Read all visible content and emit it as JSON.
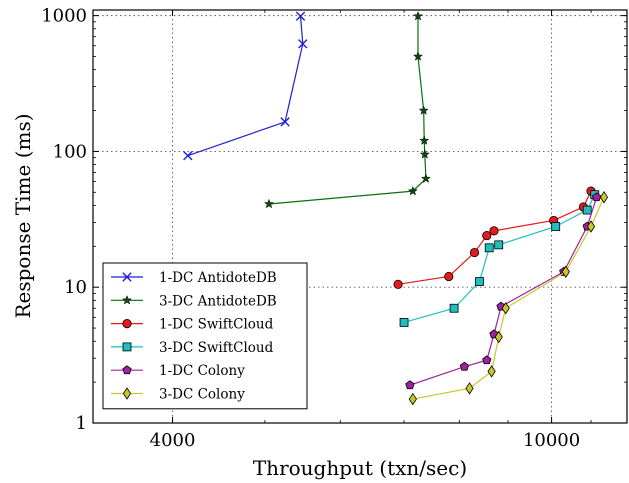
{
  "chart_data": {
    "type": "line",
    "title": "",
    "xlabel": "Throughput (txn/sec)",
    "ylabel": "Response Time (ms)",
    "xscale": "log",
    "yscale": "log",
    "xlim": [
      3300,
      12000
    ],
    "ylim": [
      1,
      1100
    ],
    "xticks": [
      {
        "value": 4000,
        "label": "4000"
      },
      {
        "value": 10000,
        "label": "10000"
      }
    ],
    "yticks": [
      {
        "value": 1,
        "label": "1"
      },
      {
        "value": 10,
        "label": "10"
      },
      {
        "value": 100,
        "label": "100"
      },
      {
        "value": 1000,
        "label": "1000"
      }
    ],
    "grid": true,
    "legend_position": "bottom-left",
    "series": [
      {
        "name": "1-DC AntidoteDB",
        "marker": "x",
        "color": "#1f1fd6",
        "points": [
          [
            4150,
            93
          ],
          [
            5250,
            165
          ],
          [
            5480,
            620
          ],
          [
            5450,
            990
          ]
        ]
      },
      {
        "name": "3-DC AntidoteDB",
        "marker": "star",
        "color": "#0b6e0b",
        "points": [
          [
            5050,
            41
          ],
          [
            7150,
            51
          ],
          [
            7380,
            63
          ],
          [
            7360,
            95
          ],
          [
            7350,
            120
          ],
          [
            7340,
            200
          ],
          [
            7240,
            500
          ],
          [
            7240,
            990
          ]
        ]
      },
      {
        "name": "1-DC SwiftCloud",
        "marker": "circle",
        "color": "#e41a1c",
        "points": [
          [
            6900,
            10.5
          ],
          [
            7800,
            12
          ],
          [
            8300,
            18
          ],
          [
            8550,
            24
          ],
          [
            8700,
            26
          ],
          [
            10050,
            31
          ],
          [
            10800,
            39
          ],
          [
            11000,
            51
          ]
        ]
      },
      {
        "name": "3-DC SwiftCloud",
        "marker": "square",
        "color": "#1fbfbf",
        "points": [
          [
            7000,
            5.5
          ],
          [
            7900,
            7
          ],
          [
            8400,
            11
          ],
          [
            8600,
            19.5
          ],
          [
            8800,
            20.5
          ],
          [
            10100,
            28
          ],
          [
            10900,
            37
          ],
          [
            11100,
            48
          ]
        ]
      },
      {
        "name": "1-DC Colony",
        "marker": "pentagon",
        "color": "#a020a0",
        "points": [
          [
            7100,
            1.9
          ],
          [
            8100,
            2.6
          ],
          [
            8550,
            2.9
          ],
          [
            8700,
            4.5
          ],
          [
            8850,
            7.2
          ],
          [
            10300,
            13
          ],
          [
            10900,
            28
          ],
          [
            11150,
            46
          ]
        ]
      },
      {
        "name": "3-DC Colony",
        "marker": "diamond",
        "color": "#c8c82a",
        "points": [
          [
            7150,
            1.5
          ],
          [
            8200,
            1.8
          ],
          [
            8650,
            2.4
          ],
          [
            8800,
            4.3
          ],
          [
            8950,
            7.0
          ],
          [
            10350,
            13
          ],
          [
            11000,
            28
          ],
          [
            11350,
            46
          ]
        ]
      }
    ]
  }
}
